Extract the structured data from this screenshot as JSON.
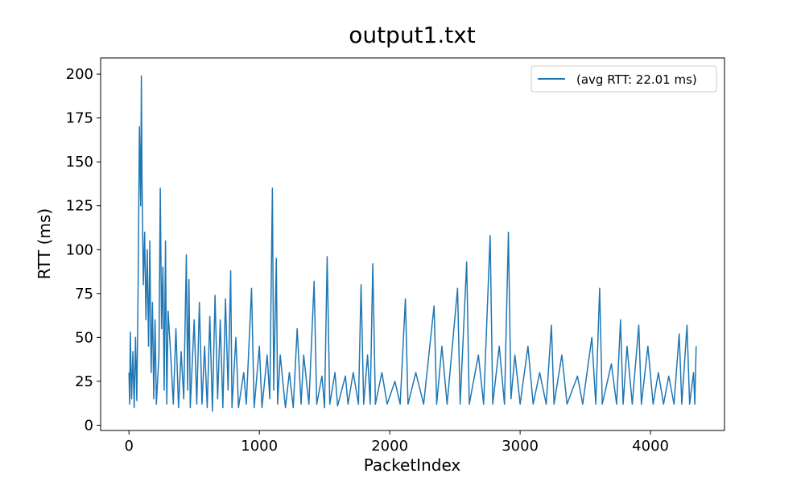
{
  "chart_data": {
    "type": "line",
    "title": "output1.txt",
    "x_label": "PacketIndex",
    "y_label": "RTT (ms)",
    "legend": "upper right",
    "grid": false,
    "xlim": [
      -217.5,
      4567.5
    ],
    "xticks": [
      0,
      1000,
      2000,
      3000,
      4000
    ],
    "ylim": [
      -3,
      209.2
    ],
    "yticks": [
      0,
      25,
      50,
      75,
      100,
      125,
      150,
      175,
      200
    ],
    "series": [
      {
        "name": "(avg RTT: 22.01 ms)",
        "color": "#1f77b4",
        "x": [
          0,
          5,
          10,
          20,
          30,
          40,
          50,
          60,
          70,
          80,
          90,
          95,
          100,
          110,
          120,
          130,
          140,
          150,
          160,
          170,
          180,
          190,
          200,
          210,
          230,
          240,
          250,
          260,
          270,
          280,
          290,
          300,
          320,
          340,
          360,
          380,
          400,
          420,
          440,
          450,
          460,
          470,
          500,
          520,
          540,
          560,
          580,
          600,
          620,
          640,
          660,
          680,
          700,
          720,
          740,
          760,
          780,
          790,
          820,
          840,
          880,
          900,
          940,
          960,
          1000,
          1020,
          1060,
          1080,
          1100,
          1110,
          1130,
          1140,
          1160,
          1200,
          1230,
          1260,
          1290,
          1320,
          1340,
          1380,
          1420,
          1440,
          1480,
          1500,
          1520,
          1540,
          1580,
          1600,
          1660,
          1680,
          1720,
          1760,
          1780,
          1800,
          1830,
          1850,
          1870,
          1890,
          1940,
          1980,
          2040,
          2080,
          2120,
          2140,
          2200,
          2260,
          2340,
          2360,
          2400,
          2440,
          2520,
          2540,
          2590,
          2610,
          2680,
          2720,
          2770,
          2790,
          2840,
          2880,
          2910,
          2930,
          2960,
          3000,
          3060,
          3100,
          3150,
          3200,
          3240,
          3260,
          3320,
          3360,
          3440,
          3480,
          3550,
          3580,
          3610,
          3630,
          3700,
          3740,
          3770,
          3790,
          3820,
          3860,
          3910,
          3930,
          3980,
          4020,
          4060,
          4100,
          4140,
          4180,
          4220,
          4240,
          4280,
          4300,
          4330,
          4340,
          4350
        ],
        "values": [
          30,
          12,
          53,
          15,
          42,
          10,
          50,
          14,
          78,
          170,
          125,
          199,
          140,
          80,
          110,
          60,
          100,
          45,
          105,
          30,
          70,
          15,
          60,
          12,
          40,
          135,
          55,
          90,
          20,
          105,
          12,
          65,
          40,
          12,
          55,
          10,
          42,
          15,
          97,
          20,
          83,
          10,
          60,
          12,
          70,
          12,
          45,
          10,
          62,
          8,
          74,
          15,
          60,
          10,
          72,
          20,
          88,
          10,
          50,
          10,
          30,
          12,
          78,
          10,
          45,
          10,
          40,
          15,
          135,
          20,
          95,
          12,
          40,
          10,
          30,
          10,
          55,
          12,
          40,
          12,
          82,
          12,
          28,
          10,
          96,
          12,
          30,
          11,
          28,
          12,
          30,
          12,
          80,
          12,
          40,
          12,
          92,
          12,
          30,
          12,
          25,
          12,
          72,
          12,
          30,
          12,
          68,
          12,
          45,
          12,
          78,
          12,
          93,
          12,
          40,
          12,
          108,
          12,
          45,
          12,
          110,
          15,
          40,
          12,
          45,
          12,
          30,
          12,
          57,
          12,
          40,
          12,
          28,
          12,
          50,
          12,
          78,
          12,
          35,
          12,
          60,
          12,
          45,
          12,
          57,
          12,
          45,
          12,
          30,
          12,
          28,
          12,
          52,
          12,
          57,
          12,
          30,
          12,
          45
        ]
      }
    ]
  }
}
